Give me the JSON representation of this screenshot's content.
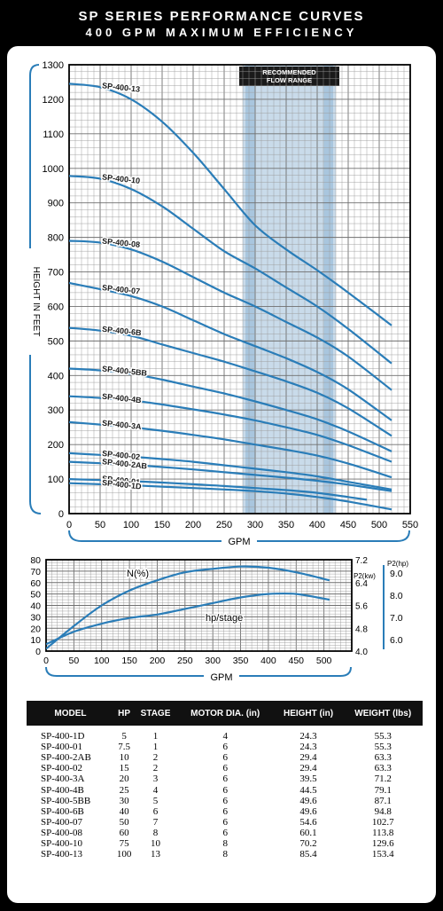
{
  "header": {
    "title": "SP SERIES PERFORMANCE CURVES",
    "subtitle": "400 GPM MAXIMUM EFFICIENCY"
  },
  "colors": {
    "curve": "#2a7db8",
    "grid": "#9a9a9a",
    "band": "#a9c6de",
    "background": "#000000"
  },
  "chart_data": [
    {
      "type": "line",
      "xlabel": "GPM",
      "ylabel": "HEIGHT IN FEET",
      "xlim": [
        0,
        550
      ],
      "ylim": [
        0,
        1300
      ],
      "xticks": [
        0,
        50,
        100,
        150,
        200,
        250,
        300,
        350,
        400,
        450,
        500,
        550
      ],
      "yticks": [
        0,
        100,
        200,
        300,
        400,
        500,
        600,
        700,
        800,
        900,
        1000,
        1100,
        1200,
        1300
      ],
      "band_label": [
        "RECOMMENDED",
        "FLOW RANGE"
      ],
      "band_outer": [
        280,
        430
      ],
      "band_inner": [
        295,
        415
      ],
      "series": [
        {
          "name": "SP-400-13",
          "x": [
            0,
            50,
            100,
            150,
            200,
            250,
            300,
            350,
            400,
            450,
            520
          ],
          "values": [
            1245,
            1235,
            1200,
            1135,
            1045,
            940,
            835,
            765,
            705,
            640,
            545
          ]
        },
        {
          "name": "SP-400-10",
          "x": [
            0,
            50,
            100,
            150,
            200,
            250,
            300,
            350,
            400,
            450,
            520
          ],
          "values": [
            978,
            970,
            940,
            890,
            825,
            760,
            710,
            655,
            600,
            535,
            435
          ]
        },
        {
          "name": "SP-400-08",
          "x": [
            0,
            50,
            100,
            150,
            200,
            250,
            300,
            350,
            400,
            450,
            520
          ],
          "values": [
            790,
            785,
            765,
            730,
            685,
            640,
            600,
            555,
            510,
            455,
            358
          ]
        },
        {
          "name": "SP-400-07",
          "x": [
            0,
            50,
            100,
            150,
            200,
            250,
            300,
            350,
            400,
            450,
            520
          ],
          "values": [
            668,
            650,
            630,
            600,
            560,
            520,
            485,
            450,
            410,
            360,
            270
          ]
        },
        {
          "name": "SP-400-6B",
          "x": [
            0,
            50,
            100,
            150,
            200,
            250,
            300,
            350,
            400,
            450,
            520
          ],
          "values": [
            538,
            530,
            515,
            490,
            465,
            440,
            412,
            383,
            350,
            305,
            225
          ]
        },
        {
          "name": "SP-400-5BB",
          "x": [
            0,
            50,
            100,
            150,
            200,
            250,
            300,
            350,
            400,
            450,
            520
          ],
          "values": [
            420,
            415,
            405,
            388,
            368,
            348,
            325,
            300,
            273,
            238,
            180
          ]
        },
        {
          "name": "SP-400-4B",
          "x": [
            0,
            50,
            100,
            150,
            200,
            250,
            300,
            350,
            400,
            450,
            520
          ],
          "values": [
            340,
            335,
            328,
            316,
            302,
            287,
            270,
            250,
            228,
            198,
            150
          ]
        },
        {
          "name": "SP-400-3A",
          "x": [
            0,
            50,
            100,
            150,
            200,
            250,
            300,
            350,
            400,
            450,
            520
          ],
          "values": [
            265,
            258,
            250,
            240,
            228,
            215,
            200,
            185,
            168,
            145,
            105
          ]
        },
        {
          "name": "SP-400-02",
          "x": [
            0,
            50,
            100,
            150,
            200,
            250,
            300,
            350,
            400,
            450,
            520
          ],
          "values": [
            175,
            170,
            165,
            158,
            150,
            140,
            130,
            120,
            108,
            92,
            70
          ]
        },
        {
          "name": "SP-400-2AB",
          "x": [
            0,
            50,
            100,
            150,
            200,
            250,
            300,
            350,
            400,
            450,
            520
          ],
          "values": [
            150,
            146,
            141,
            135,
            128,
            120,
            112,
            104,
            95,
            84,
            65
          ]
        },
        {
          "name": "SP-400-01",
          "x": [
            0,
            50,
            100,
            150,
            200,
            250,
            300,
            350,
            400,
            450,
            480
          ],
          "values": [
            100,
            97,
            94,
            90,
            85,
            80,
            74,
            68,
            60,
            48,
            40
          ]
        },
        {
          "name": "SP-400-1D",
          "x": [
            0,
            50,
            100,
            150,
            200,
            250,
            300,
            350,
            400,
            450,
            520
          ],
          "values": [
            88,
            85,
            82,
            78,
            74,
            70,
            65,
            58,
            48,
            35,
            12
          ]
        }
      ]
    },
    {
      "type": "line",
      "xlabel": "GPM",
      "xlim": [
        0,
        550
      ],
      "ylim": [
        0,
        80
      ],
      "xticks": [
        0,
        50,
        100,
        150,
        200,
        250,
        300,
        350,
        400,
        450,
        500
      ],
      "yticks": [
        0,
        10,
        20,
        30,
        40,
        50,
        60,
        70,
        80
      ],
      "y2_label": "P2(kw)",
      "y2_ticks": [
        "4.0",
        "4.8",
        "5.6",
        "6.4",
        "7.2"
      ],
      "y3_label": "P2(hp)",
      "y3_ticks": [
        "6.0",
        "7.0",
        "8.0",
        "9.0"
      ],
      "series": [
        {
          "name": "N(%)",
          "x": [
            0,
            50,
            100,
            150,
            200,
            250,
            300,
            350,
            400,
            450,
            510
          ],
          "values": [
            2,
            22,
            40,
            53,
            62,
            69,
            72,
            74,
            73,
            69,
            62
          ]
        },
        {
          "name": "hp/stage",
          "x": [
            0,
            50,
            100,
            150,
            200,
            250,
            300,
            350,
            400,
            450,
            510
          ],
          "values": [
            6,
            17,
            24,
            29,
            32,
            37,
            42,
            47,
            50,
            50,
            45
          ]
        }
      ]
    }
  ],
  "table": {
    "headers": [
      "MODEL",
      "HP",
      "STAGE",
      "MOTOR DIA. (in)",
      "HEIGHT (in)",
      "WEIGHT (lbs)"
    ],
    "rows": [
      [
        "SP-400-1D",
        "5",
        "1",
        "4",
        "24.3",
        "55.3"
      ],
      [
        "SP-400-01",
        "7.5",
        "1",
        "6",
        "24.3",
        "55.3"
      ],
      [
        "SP-400-2AB",
        "10",
        "2",
        "6",
        "29.4",
        "63.3"
      ],
      [
        "SP-400-02",
        "15",
        "2",
        "6",
        "29.4",
        "63.3"
      ],
      [
        "SP-400-3A",
        "20",
        "3",
        "6",
        "39.5",
        "71.2"
      ],
      [
        "SP-400-4B",
        "25",
        "4",
        "6",
        "44.5",
        "79.1"
      ],
      [
        "SP-400-5BB",
        "30",
        "5",
        "6",
        "49.6",
        "87.1"
      ],
      [
        "SP-400-6B",
        "40",
        "6",
        "6",
        "49.6",
        "94.8"
      ],
      [
        "SP-400-07",
        "50",
        "7",
        "6",
        "54.6",
        "102.7"
      ],
      [
        "SP-400-08",
        "60",
        "8",
        "6",
        "60.1",
        "113.8"
      ],
      [
        "SP-400-10",
        "75",
        "10",
        "8",
        "70.2",
        "129.6"
      ],
      [
        "SP-400-13",
        "100",
        "13",
        "8",
        "85.4",
        "153.4"
      ]
    ]
  }
}
